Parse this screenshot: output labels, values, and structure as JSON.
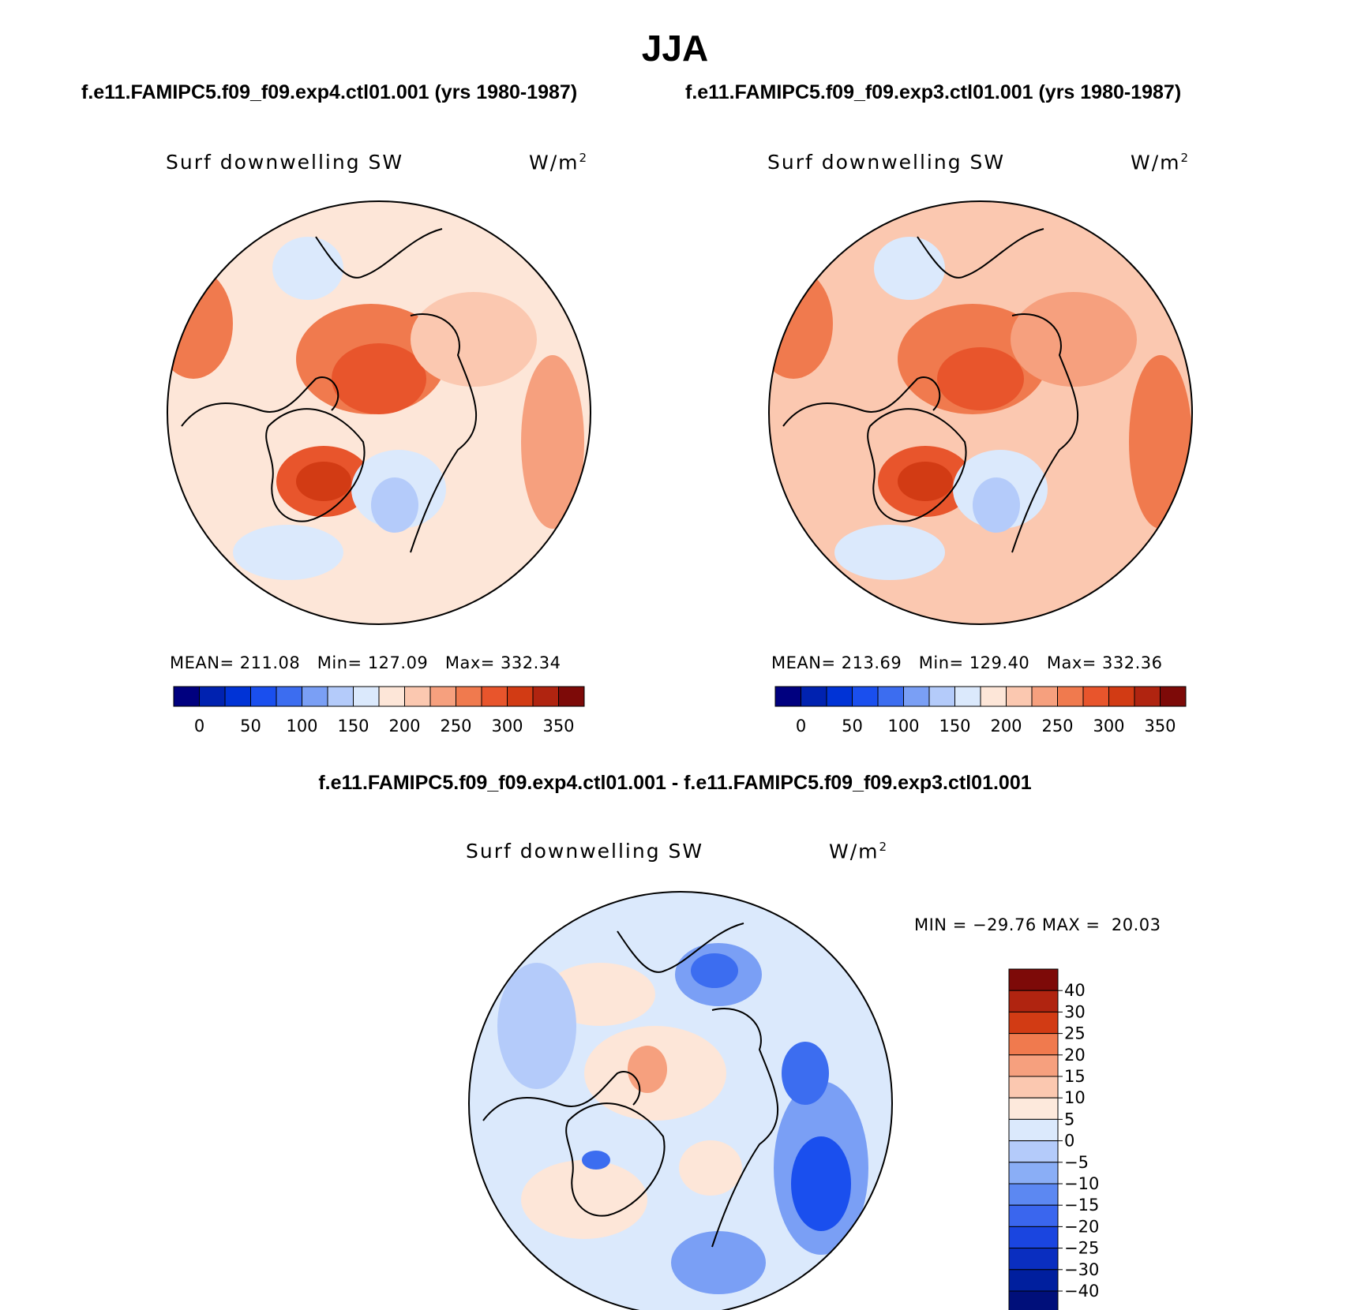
{
  "figure": {
    "title": "JJA",
    "left_case": "f.e11.FAMIPC5.f09_f09.exp4.ctl01.001 (yrs 1980-1987)",
    "right_case": "f.e11.FAMIPC5.f09_f09.exp3.ctl01.001 (yrs 1980-1987)",
    "diff_title": "f.e11.FAMIPC5.f09_f09.exp4.ctl01.001 - f.e11.FAMIPC5.f09_f09.exp3.ctl01.001"
  },
  "panels": {
    "left": {
      "variable": "Surf downwelling SW",
      "units_base": "W/m",
      "units_exp": "2",
      "mean_label": "MEAN=",
      "mean": "211.08",
      "min_label": "Min=",
      "min": "127.09",
      "max_label": "Max=",
      "max": "332.34"
    },
    "right": {
      "variable": "Surf downwelling SW",
      "units_base": "W/m",
      "units_exp": "2",
      "mean_label": "MEAN=",
      "mean": "213.69",
      "min_label": "Min=",
      "min": "129.40",
      "max_label": "Max=",
      "max": "332.36"
    },
    "diff": {
      "variable": "Surf downwelling SW",
      "units_base": "W/m",
      "units_exp": "2",
      "minmax": "MIN = −29.76 MAX =  20.03"
    }
  },
  "colorbars": {
    "absolute": {
      "colors": [
        "#00007f",
        "#0022b0",
        "#0033d6",
        "#1a4fee",
        "#3c6df0",
        "#7a9ff5",
        "#b4cbfa",
        "#dbe9fc",
        "#fde6d8",
        "#fbc8b0",
        "#f6a07e",
        "#f07a4e",
        "#e8552c",
        "#d23b14",
        "#b02410",
        "#7d0a08"
      ],
      "labels": [
        "0",
        "50",
        "100",
        "150",
        "200",
        "250",
        "300",
        "350"
      ]
    },
    "difference": {
      "colors": [
        "#7d0a08",
        "#b02410",
        "#d23b14",
        "#f07a4e",
        "#f6a07e",
        "#fbc8b0",
        "#fde9dc",
        "#dbe9fc",
        "#b4cbfa",
        "#8aaef6",
        "#5c88f2",
        "#3a66ee",
        "#1a45e0",
        "#0a2ec0",
        "#001f9e",
        "#000f7a"
      ],
      "labels": [
        "40",
        "30",
        "25",
        "20",
        "15",
        "10",
        "5",
        "0",
        "−5",
        "−10",
        "−15",
        "−20",
        "−25",
        "−30",
        "−40"
      ]
    }
  },
  "map_colors": {
    "neutral_pos": "#fde6d8",
    "light_pos": "#fbc8b0",
    "mid_pos": "#f6a07e",
    "strong_pos": "#f07a4e",
    "very_strong_pos": "#e8552c",
    "deep_pos": "#d23b14",
    "darkest_pos": "#b02410",
    "neutral_neg": "#dbe9fc",
    "light_neg": "#b4cbfa",
    "mid_neg": "#7a9ff5",
    "strong_neg": "#3c6df0",
    "very_strong_neg": "#1a4fee",
    "coast": "#000000"
  }
}
